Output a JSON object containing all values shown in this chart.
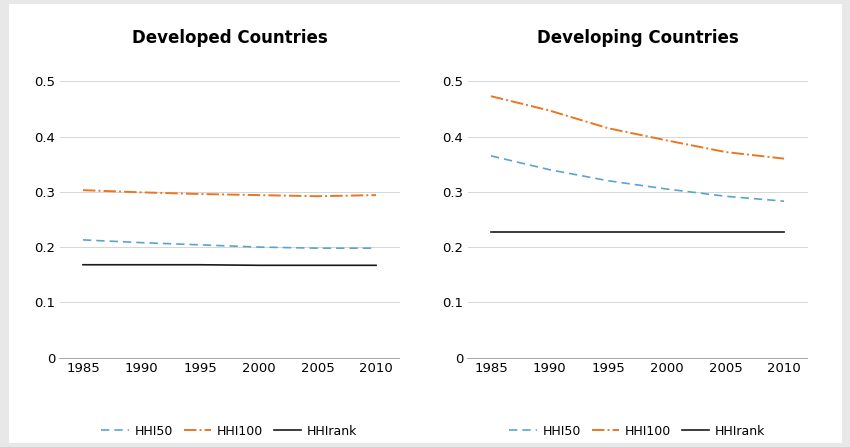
{
  "years": [
    1985,
    1990,
    1995,
    2000,
    2005,
    2010
  ],
  "developed": {
    "HHI50": [
      0.213,
      0.208,
      0.204,
      0.2,
      0.198,
      0.198
    ],
    "HHI100": [
      0.303,
      0.299,
      0.296,
      0.294,
      0.292,
      0.294
    ],
    "HHIrank": [
      0.168,
      0.168,
      0.168,
      0.167,
      0.167,
      0.167
    ]
  },
  "developing": {
    "HHI50": [
      0.365,
      0.34,
      0.32,
      0.305,
      0.292,
      0.283
    ],
    "HHI100": [
      0.473,
      0.447,
      0.415,
      0.393,
      0.372,
      0.36
    ],
    "HHIrank": [
      0.228,
      0.228,
      0.228,
      0.228,
      0.228,
      0.228
    ]
  },
  "titles": [
    "Developed Countries",
    "Developing Countries"
  ],
  "legend_labels": [
    "HHI50",
    "HHI100",
    "HHIrank"
  ],
  "hhi50_color": "#5BA4CF",
  "hhi100_color": "#E87722",
  "hhirank_color": "#1A1A1A",
  "ylim": [
    0,
    0.55
  ],
  "yticks": [
    0,
    0.1,
    0.2,
    0.3,
    0.4,
    0.5
  ],
  "xticks": [
    1985,
    1990,
    1995,
    2000,
    2005,
    2010
  ],
  "outer_bg": "#E8E8E8",
  "inner_bg": "#FFFFFF",
  "title_fontsize": 12,
  "tick_fontsize": 9.5,
  "legend_fontsize": 9
}
